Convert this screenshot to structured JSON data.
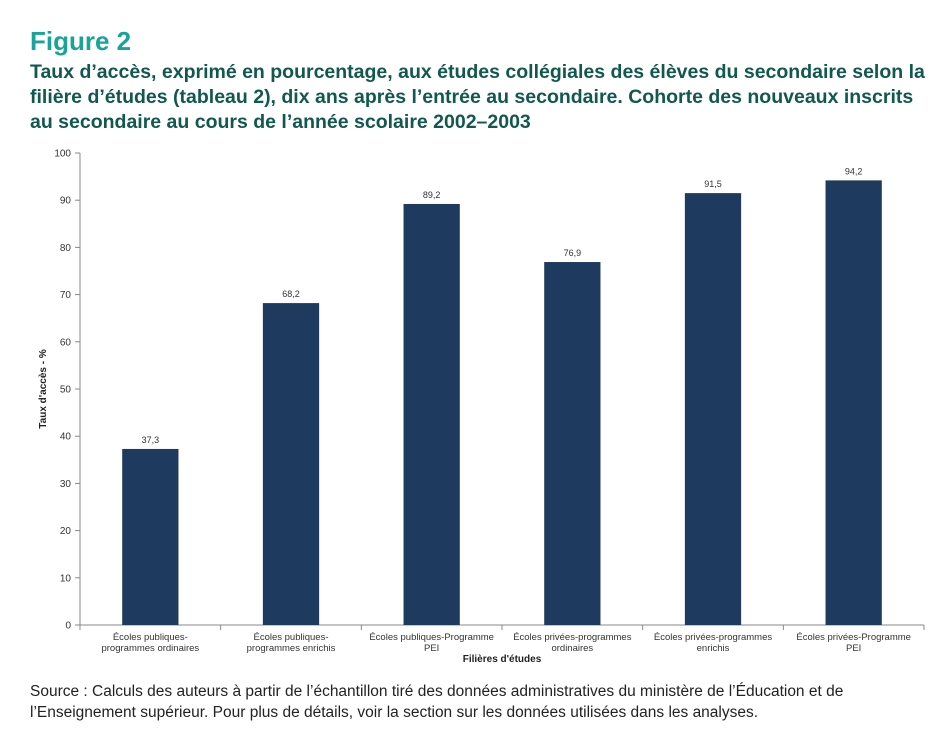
{
  "figure": {
    "label": "Figure 2",
    "title": "Taux d’accès, exprimé en pourcentage, aux études collégiales des élèves du secondaire selon la filière d’études (tableau 2), dix ans après l’entrée au secondaire. Cohorte des nouveaux inscrits au secondaire au cours de l’année scolaire 2002–2003",
    "source": "Source : Calculs des auteurs à partir de l’échantillon tiré des données administratives du ministère de l’Éducation et de l’Enseignement supérieur. Pour plus de détails, voir la section sur les données utilisées dans les analyses."
  },
  "chart_data": {
    "type": "bar",
    "categories": [
      [
        "Écoles publiques-",
        "programmes ordinaires"
      ],
      [
        "Écoles publiques-",
        "programmes enrichis"
      ],
      [
        "Écoles publiques-Programme",
        "PEI"
      ],
      [
        "Écoles privées-programmes",
        "ordinaires"
      ],
      [
        "Écoles privées-programmes",
        "enrichis"
      ],
      [
        "Écoles privées-Programme",
        "PEI"
      ]
    ],
    "values": [
      37.3,
      68.2,
      89.2,
      76.9,
      91.5,
      94.2
    ],
    "data_labels": [
      "37,3",
      "68,2",
      "89,2",
      "76,9",
      "91,5",
      "94,2"
    ],
    "xlabel": "Filières d'études",
    "ylabel": "Taux d'accès - %",
    "ylim": [
      0,
      100
    ],
    "yticks": [
      0,
      10,
      20,
      30,
      40,
      50,
      60,
      70,
      80,
      90,
      100
    ],
    "grid": false,
    "bar_color": "#1f3a5f",
    "axis_color": "#888888"
  }
}
